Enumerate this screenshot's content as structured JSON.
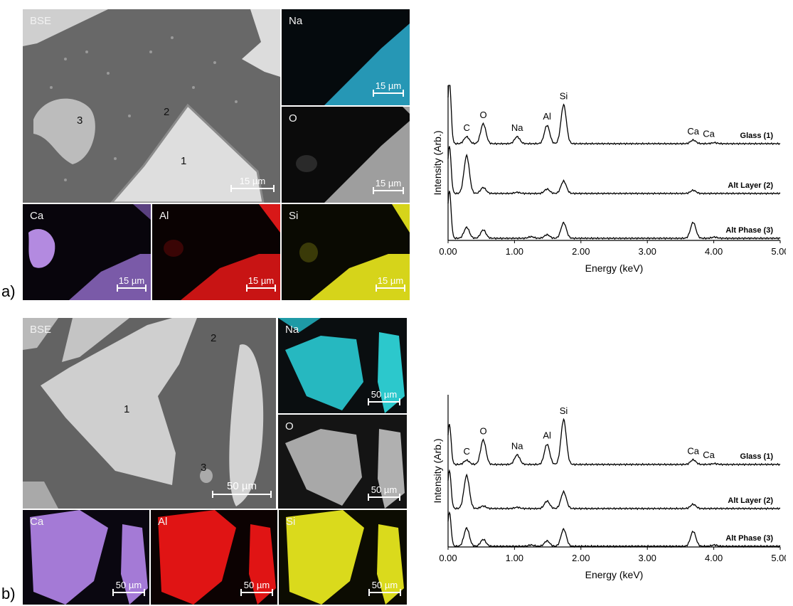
{
  "panels": [
    {
      "letter": "a)",
      "bse_label": "BSE",
      "phase_labels": [
        "1",
        "2",
        "3"
      ],
      "bse_scale": "15 µm",
      "maps": [
        {
          "element": "Na",
          "scale": "15 µm",
          "color": "#2aa6c8"
        },
        {
          "element": "O",
          "scale": "15 µm",
          "color": "#a8a8a8"
        },
        {
          "element": "Ca",
          "scale": "15 µm",
          "color": "#8a66c0"
        },
        {
          "element": "Al",
          "scale": "15 µm",
          "color": "#d81818"
        },
        {
          "element": "Si",
          "scale": "15 µm",
          "color": "#d6d41a"
        }
      ]
    },
    {
      "letter": "b)",
      "bse_label": "BSE",
      "phase_labels": [
        "1",
        "2",
        "3"
      ],
      "bse_scale": "50 µm",
      "maps": [
        {
          "element": "Na",
          "scale": "50 µm",
          "color": "#2cc0c8"
        },
        {
          "element": "O",
          "scale": "50 µm",
          "color": "#bdbdbd"
        },
        {
          "element": "Ca",
          "scale": "50 µm",
          "color": "#a47ad6"
        },
        {
          "element": "Al",
          "scale": "50 µm",
          "color": "#e01414"
        },
        {
          "element": "Si",
          "scale": "50 µm",
          "color": "#dada1c"
        }
      ]
    }
  ],
  "chart_data": [
    {
      "type": "line",
      "title": "",
      "xlabel": "Energy (keV)",
      "ylabel": "Intensity (Arb.)",
      "xlim": [
        0,
        5
      ],
      "xticks": [
        "0.00",
        "1.00",
        "2.00",
        "3.00",
        "4.00",
        "5.00"
      ],
      "peak_labels": [
        {
          "text": "C",
          "x": 0.28
        },
        {
          "text": "O",
          "x": 0.53
        },
        {
          "text": "Na",
          "x": 1.04
        },
        {
          "text": "Al",
          "x": 1.49
        },
        {
          "text": "Si",
          "x": 1.74
        },
        {
          "text": "Ca",
          "x": 3.69
        },
        {
          "text": "Ca",
          "x": 4.01
        }
      ],
      "series": [
        {
          "name": "Glass (1)",
          "peaks": [
            [
              0.02,
              3.2
            ],
            [
              0.28,
              0.35
            ],
            [
              0.53,
              1.0
            ],
            [
              1.04,
              0.35
            ],
            [
              1.49,
              0.92
            ],
            [
              1.74,
              1.95
            ],
            [
              3.69,
              0.18
            ],
            [
              4.01,
              0.05
            ]
          ]
        },
        {
          "name": "Alt Layer (2)",
          "peaks": [
            [
              0.02,
              2.4
            ],
            [
              0.28,
              1.9
            ],
            [
              0.53,
              0.3
            ],
            [
              1.04,
              0.06
            ],
            [
              1.49,
              0.22
            ],
            [
              1.74,
              0.62
            ],
            [
              3.69,
              0.16
            ]
          ]
        },
        {
          "name": "Alt Phase (3)",
          "peaks": [
            [
              0.02,
              2.4
            ],
            [
              0.28,
              0.55
            ],
            [
              0.53,
              0.42
            ],
            [
              1.25,
              0.08
            ],
            [
              1.49,
              0.18
            ],
            [
              1.74,
              0.78
            ],
            [
              3.69,
              0.8
            ],
            [
              4.01,
              0.06
            ]
          ]
        }
      ]
    },
    {
      "type": "line",
      "title": "",
      "xlabel": "Energy (keV)",
      "ylabel": "Intensity (Arb.)",
      "xlim": [
        0,
        5
      ],
      "xticks": [
        "0.00",
        "1.00",
        "2.00",
        "3.00",
        "4.00",
        "5.00"
      ],
      "peak_labels": [
        {
          "text": "C",
          "x": 0.28
        },
        {
          "text": "O",
          "x": 0.53
        },
        {
          "text": "Na",
          "x": 1.04
        },
        {
          "text": "Al",
          "x": 1.49
        },
        {
          "text": "Si",
          "x": 1.74
        },
        {
          "text": "Ca",
          "x": 3.69
        },
        {
          "text": "Ca",
          "x": 4.01
        }
      ],
      "series": [
        {
          "name": "Glass (1)",
          "peaks": [
            [
              0.02,
              1.9
            ],
            [
              0.28,
              0.2
            ],
            [
              0.53,
              1.15
            ],
            [
              1.04,
              0.45
            ],
            [
              1.49,
              0.95
            ],
            [
              1.74,
              2.1
            ],
            [
              3.69,
              0.22
            ],
            [
              4.01,
              0.04
            ]
          ]
        },
        {
          "name": "Alt Layer (2)",
          "peaks": [
            [
              0.02,
              1.8
            ],
            [
              0.28,
              1.55
            ],
            [
              0.53,
              0.12
            ],
            [
              1.04,
              0.06
            ],
            [
              1.49,
              0.35
            ],
            [
              1.74,
              0.78
            ],
            [
              3.69,
              0.2
            ]
          ]
        },
        {
          "name": "Alt Phase (3)",
          "peaks": [
            [
              0.02,
              1.6
            ],
            [
              0.28,
              0.85
            ],
            [
              0.53,
              0.32
            ],
            [
              1.25,
              0.06
            ],
            [
              1.49,
              0.25
            ],
            [
              1.74,
              0.8
            ],
            [
              3.69,
              0.7
            ],
            [
              4.01,
              0.06
            ]
          ]
        }
      ]
    }
  ]
}
